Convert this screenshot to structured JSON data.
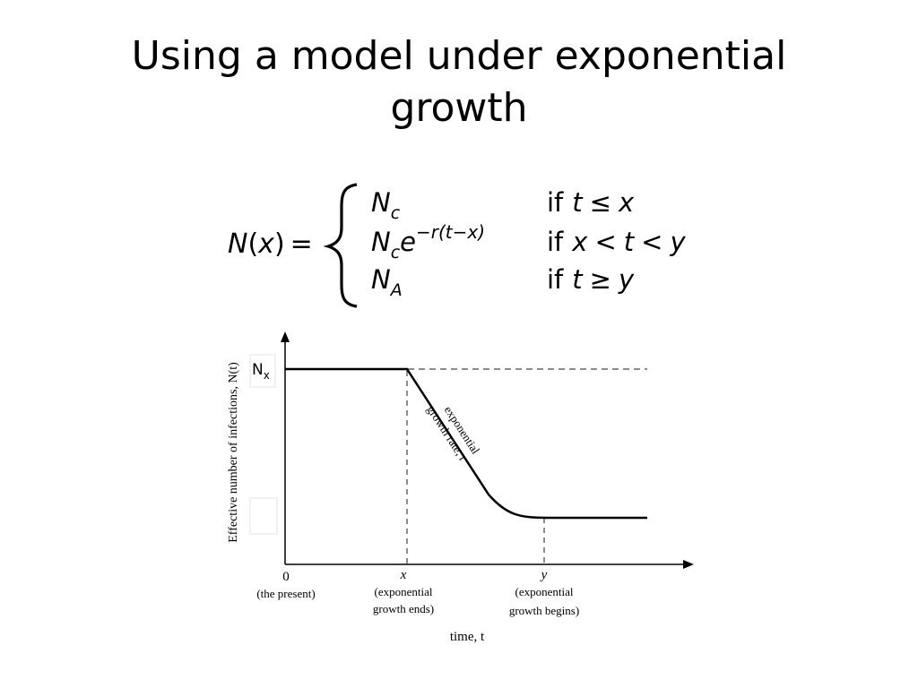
{
  "title": {
    "line1": "Using a model under exponential",
    "line2": "growth"
  },
  "formula": {
    "lhs_func": "N",
    "lhs_arg": "x",
    "cases": [
      {
        "expr": "N",
        "sub": "c",
        "sup": "",
        "cond_if": "if",
        "cond_a": "t",
        "cond_op": "≤",
        "cond_b": "x",
        "cond_op2": "",
        "cond_c": ""
      },
      {
        "expr": "N",
        "sub": "c",
        "base": "e",
        "sup": "−r(t−x)",
        "cond_if": "if",
        "cond_a": "x",
        "cond_op": "<",
        "cond_b": "t",
        "cond_op2": "<",
        "cond_c": "y"
      },
      {
        "expr": "N",
        "sub": "A",
        "sup": "",
        "cond_if": "if",
        "cond_a": "t",
        "cond_op": "≥",
        "cond_b": "y",
        "cond_op2": "",
        "cond_c": ""
      }
    ]
  },
  "diagram": {
    "y_axis_label": "Effective number of infections, N(t)",
    "nx_label": "N",
    "nx_sub": "x",
    "x_axis_label": "time, t",
    "ticks": [
      {
        "label": "0",
        "desc1": "(the present)",
        "desc2": ""
      },
      {
        "label": "x",
        "desc1": "(exponential",
        "desc2": "growth ends)"
      },
      {
        "label": "y",
        "desc1": "(exponential",
        "desc2": "growth begins)"
      }
    ],
    "curve_label1": "exponential",
    "curve_label2": "growth rate, r"
  }
}
